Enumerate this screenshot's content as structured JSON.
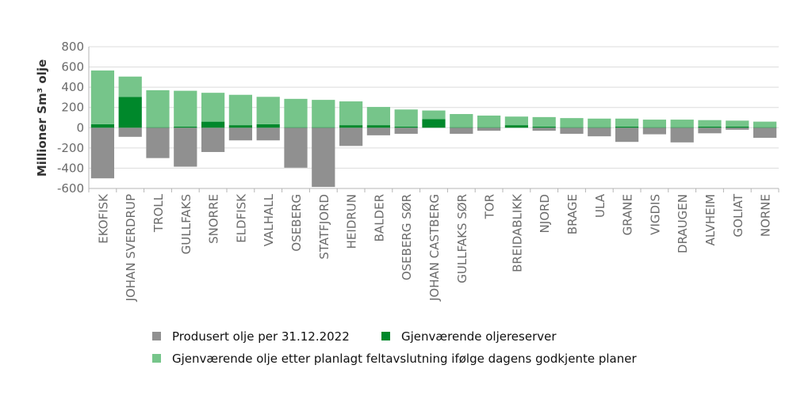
{
  "chart_data": {
    "type": "bar",
    "stacked": true,
    "ylabel": "Millioner Sm³ olje",
    "xlabel": "",
    "ylim": [
      -600,
      800
    ],
    "yticks": [
      800,
      600,
      400,
      200,
      0,
      -200,
      -400,
      -600
    ],
    "grid": true,
    "legend_position": "bottom",
    "categories": [
      "EKOFISK",
      "JOHAN SVERDRUP",
      "TROLL",
      "GULLFAKS",
      "SNORRE",
      "ELDFISK",
      "VALHALL",
      "OSEBERG",
      "STATFJORD",
      "HEIDRUN",
      "BALDER",
      "OSEBERG SØR",
      "JOHAN CASTBERG",
      "GULLFAKS SØR",
      "TOR",
      "BREIDABLIKK",
      "NJORD",
      "BRAGE",
      "ULA",
      "GRANE",
      "VIGDIS",
      "DRAUGEN",
      "ALVHEIM",
      "GOLIAT",
      "NORNE"
    ],
    "series": [
      {
        "name": "Produsert olje per 31.12.2022",
        "color": "#909090",
        "values": [
          -500,
          -90,
          -300,
          -385,
          -240,
          -125,
          -125,
          -395,
          -585,
          -180,
          -75,
          -60,
          0,
          -60,
          -30,
          0,
          -30,
          -60,
          -85,
          -140,
          -65,
          -145,
          -55,
          -20,
          -100
        ]
      },
      {
        "name": "Gjenværende oljereserver",
        "color": "#00882b",
        "values": [
          35,
          305,
          5,
          10,
          60,
          25,
          35,
          5,
          5,
          25,
          25,
          10,
          85,
          5,
          5,
          25,
          10,
          5,
          5,
          10,
          5,
          5,
          10,
          10,
          5
        ]
      },
      {
        "name": "Gjenværende olje etter planlagt feltavslutning ifølge dagens godkjente planer",
        "color": "#76c58a",
        "values": [
          530,
          200,
          365,
          355,
          285,
          300,
          270,
          280,
          270,
          235,
          180,
          170,
          85,
          130,
          115,
          85,
          95,
          90,
          85,
          80,
          75,
          75,
          65,
          60,
          55
        ]
      }
    ]
  }
}
